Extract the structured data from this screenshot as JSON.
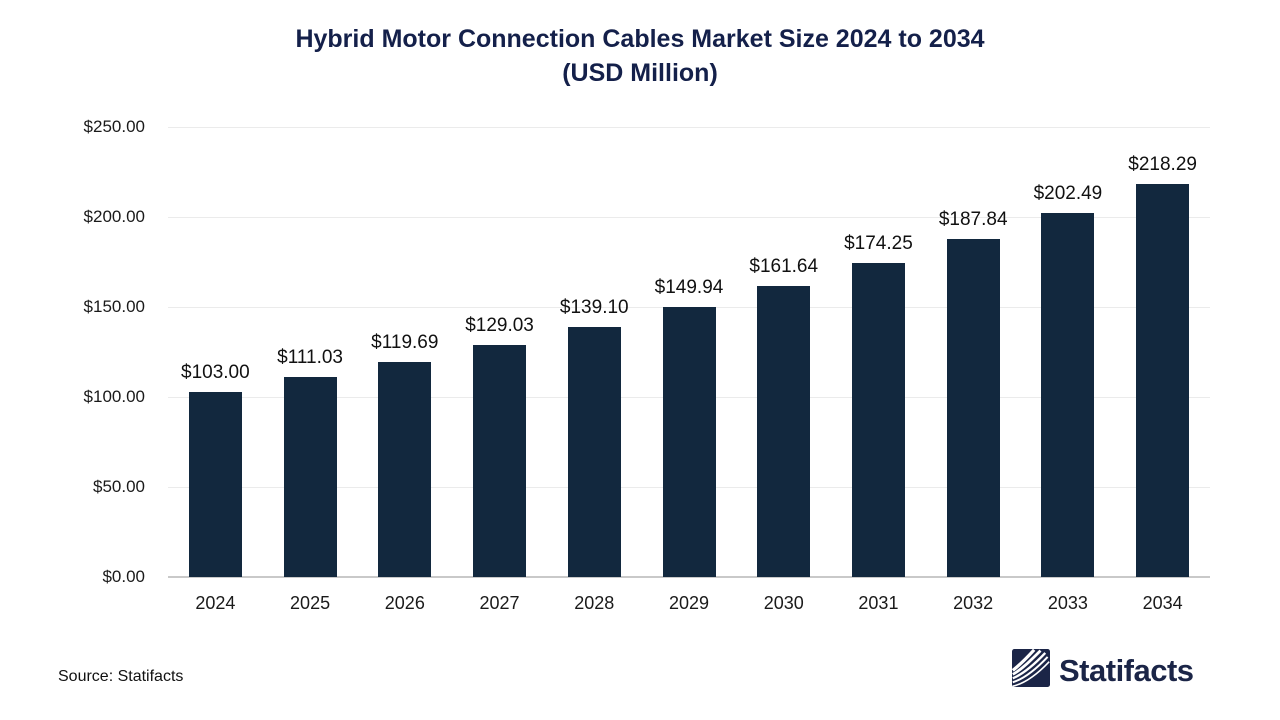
{
  "title": {
    "line1": "Hybrid Motor Connection Cables Market Size 2024 to 2034",
    "line2": "(USD Million)"
  },
  "chart_data": {
    "type": "bar",
    "title": "Hybrid Motor Connection Cables Market Size 2024 to 2034 (USD Million)",
    "categories": [
      "2024",
      "2025",
      "2026",
      "2027",
      "2028",
      "2029",
      "2030",
      "2031",
      "2032",
      "2033",
      "2034"
    ],
    "values": [
      103.0,
      111.03,
      119.69,
      129.03,
      139.1,
      149.94,
      161.64,
      174.25,
      187.84,
      202.49,
      218.29
    ],
    "bar_labels": [
      "$103.00",
      "$111.03",
      "$119.69",
      "$129.03",
      "$139.10",
      "$149.94",
      "$161.64",
      "$174.25",
      "$187.84",
      "$202.49",
      "$218.29"
    ],
    "xlabel": "",
    "ylabel": "",
    "ylim": [
      0,
      250
    ],
    "ytick_step": 50,
    "ytick_labels": [
      "$0.00",
      "$50.00",
      "$100.00",
      "$150.00",
      "$200.00",
      "$250.00"
    ],
    "grid": true,
    "legend": false,
    "bar_color": "#12283e"
  },
  "footer": {
    "source_text": "Source: Statifacts",
    "brand": "Statifacts"
  },
  "colors": {
    "title": "#14204a",
    "bar": "#12283e",
    "logo_navy": "#1b2547",
    "gridline": "#ebebeb",
    "axis_line": "#c9c9c9",
    "text": "#1a1a1a"
  }
}
